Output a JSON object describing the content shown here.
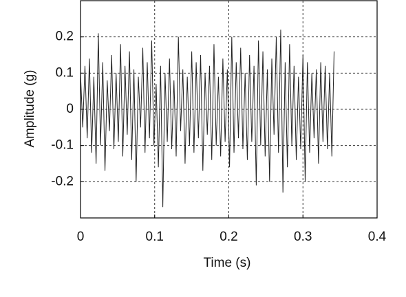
{
  "chart_data": {
    "type": "line",
    "xlabel": "Time (s)",
    "ylabel": "Amplitude (g)",
    "x": [
      0,
      0.003,
      0.006,
      0.009,
      0.012,
      0.015,
      0.018,
      0.021,
      0.024,
      0.027,
      0.03,
      0.033,
      0.036,
      0.039,
      0.042,
      0.045,
      0.048,
      0.051,
      0.054,
      0.057,
      0.06,
      0.063,
      0.066,
      0.069,
      0.072,
      0.075,
      0.078,
      0.081,
      0.084,
      0.087,
      0.09,
      0.093,
      0.096,
      0.099,
      0.102,
      0.105,
      0.108,
      0.111,
      0.114,
      0.117,
      0.12,
      0.123,
      0.126,
      0.129,
      0.132,
      0.135,
      0.138,
      0.141,
      0.144,
      0.147,
      0.15,
      0.153,
      0.156,
      0.159,
      0.162,
      0.165,
      0.168,
      0.171,
      0.174,
      0.177,
      0.18,
      0.183,
      0.186,
      0.189,
      0.192,
      0.195,
      0.198,
      0.201,
      0.204,
      0.207,
      0.21,
      0.213,
      0.216,
      0.219,
      0.222,
      0.225,
      0.228,
      0.231,
      0.234,
      0.237,
      0.24,
      0.243,
      0.246,
      0.249,
      0.252,
      0.255,
      0.258,
      0.261,
      0.264,
      0.267,
      0.27,
      0.273,
      0.276,
      0.279,
      0.282,
      0.285,
      0.288,
      0.291,
      0.294,
      0.297,
      0.3,
      0.303,
      0.306,
      0.309,
      0.312,
      0.315,
      0.318,
      0.321,
      0.324,
      0.327,
      0.33,
      0.333,
      0.336,
      0.339,
      0.342
    ],
    "values": [
      0.1,
      -0.05,
      0.12,
      -0.08,
      0.14,
      -0.12,
      0.09,
      -0.15,
      0.21,
      -0.1,
      0.13,
      -0.17,
      0.08,
      -0.06,
      0.15,
      -0.11,
      0.1,
      -0.09,
      0.18,
      -0.13,
      0.12,
      -0.07,
      0.16,
      -0.14,
      0.11,
      -0.2,
      0.09,
      -0.05,
      0.17,
      -0.12,
      0.13,
      -0.08,
      0.19,
      -0.1,
      0.07,
      -0.16,
      0.12,
      -0.27,
      0.1,
      -0.09,
      0.14,
      -0.11,
      0.08,
      -0.13,
      0.2,
      -0.06,
      0.11,
      -0.15,
      0.09,
      -0.1,
      0.16,
      -0.12,
      0.13,
      -0.08,
      0.15,
      -0.17,
      0.1,
      -0.07,
      0.12,
      -0.14,
      0.18,
      -0.1,
      0.09,
      -0.13,
      0.14,
      -0.09,
      0.11,
      -0.16,
      0.2,
      -0.12,
      0.13,
      -0.08,
      0.17,
      -0.11,
      0.1,
      -0.14,
      0.15,
      -0.09,
      0.12,
      -0.21,
      0.19,
      -0.1,
      0.16,
      -0.13,
      0.11,
      -0.2,
      0.14,
      -0.07,
      0.2,
      -0.12,
      0.22,
      -0.23,
      0.13,
      -0.16,
      0.18,
      -0.1,
      0.12,
      -0.14,
      0.09,
      -0.11,
      0.15,
      -0.2,
      0.13,
      -0.12,
      0.1,
      -0.08,
      0.11,
      -0.15,
      0.13,
      -0.09,
      0.12,
      -0.11,
      0.1,
      -0.13,
      0.16
    ],
    "color": "#222222",
    "xlim": [
      0,
      0.4
    ],
    "xticks": [
      0,
      0.1,
      0.2,
      0.3,
      0.4
    ],
    "ylim": [
      -0.3,
      0.3
    ],
    "yticks": [
      -0.2,
      -0.1,
      0,
      0.1,
      0.2
    ],
    "grid": true
  }
}
